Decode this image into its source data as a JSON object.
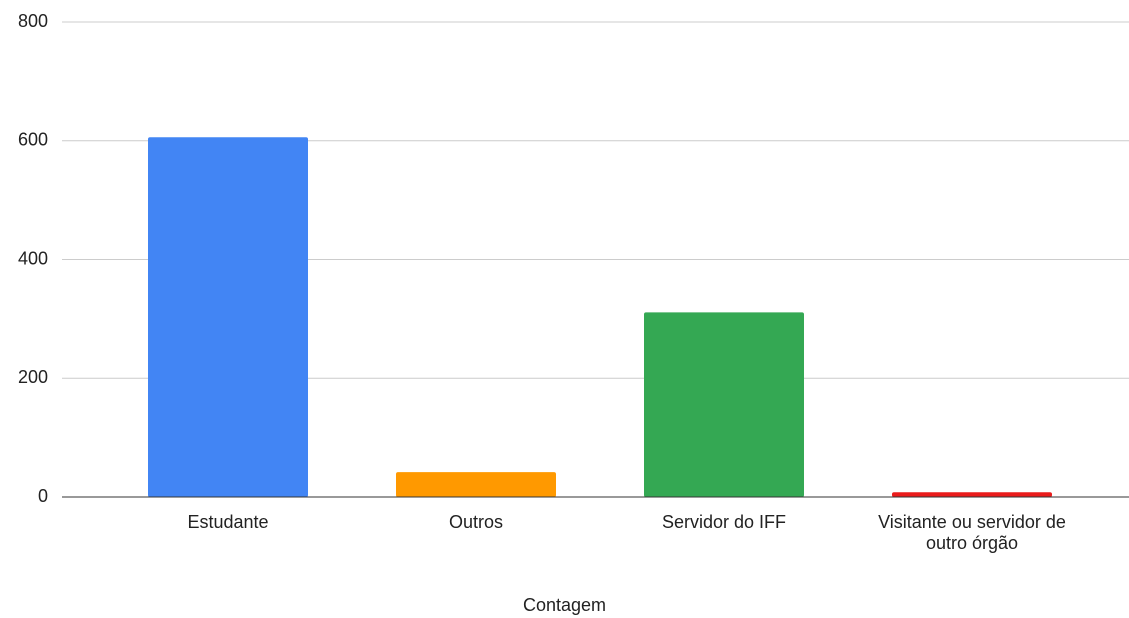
{
  "chart_data": {
    "type": "bar",
    "x_label": "Contagem",
    "categories": [
      "Estudante",
      "Outros",
      "Servidor do IFF",
      "Visitante ou servidor de outro órgão"
    ],
    "values": [
      606,
      42,
      311,
      8
    ],
    "colors": [
      "#4285f4",
      "#ff9900",
      "#34a853",
      "#ea1c1c"
    ],
    "ylim": [
      0,
      800
    ],
    "yticks": [
      0,
      200,
      400,
      600,
      800
    ],
    "grid": true
  }
}
